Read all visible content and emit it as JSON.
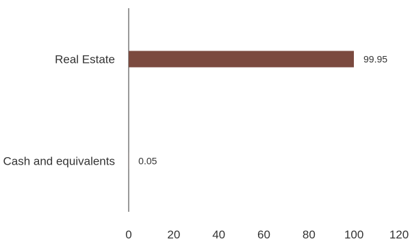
{
  "chart_data": {
    "type": "bar",
    "orientation": "horizontal",
    "title": "",
    "xlabel": "",
    "ylabel": "",
    "categories": [
      "Cash and equivalents",
      "Real Estate"
    ],
    "values": [
      0.05,
      99.95
    ],
    "data_labels": [
      "0.05",
      "99.95"
    ],
    "xlim": [
      0,
      120
    ],
    "xticks": [
      0,
      20,
      40,
      60,
      80,
      100,
      120
    ],
    "xtick_labels": [
      "0",
      "20",
      "40",
      "60",
      "80",
      "100",
      "120"
    ],
    "grid": false,
    "legend": "none",
    "bar_color": "#7b4a3f"
  }
}
